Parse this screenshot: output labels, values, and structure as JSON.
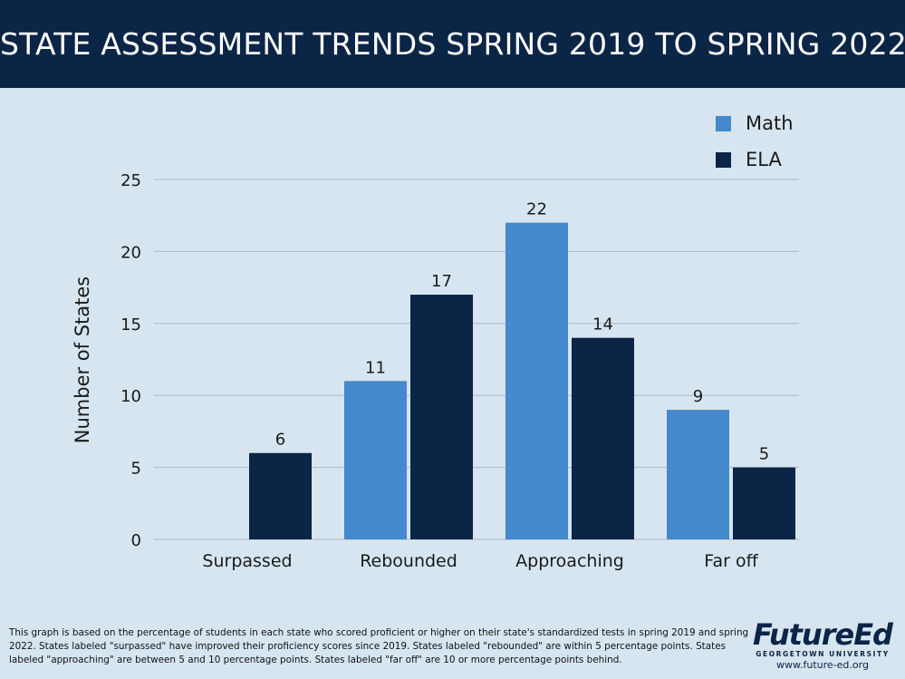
{
  "header": {
    "title": "STATE ASSESSMENT TRENDS SPRING 2019 TO SPRING 2022"
  },
  "colors": {
    "header_bg": "#0b2547",
    "background": "#d6e5f0",
    "math": "#4489cb",
    "ela": "#0b2547",
    "grid": "#a9b9c7"
  },
  "chart_data": {
    "type": "bar",
    "title": "",
    "xlabel": "",
    "ylabel": "Number of States",
    "ylim": [
      0,
      25
    ],
    "yticks": [
      0,
      5,
      10,
      15,
      20,
      25
    ],
    "categories": [
      "Surpassed",
      "Rebounded",
      "Approaching",
      "Far off"
    ],
    "series": [
      {
        "name": "Math",
        "values": [
          null,
          11,
          22,
          9
        ],
        "labels": [
          "",
          "11",
          "22",
          "9"
        ]
      },
      {
        "name": "ELA",
        "values": [
          6,
          17,
          14,
          5
        ],
        "labels": [
          "6",
          "17",
          "14",
          "5"
        ]
      }
    ],
    "grid": true,
    "legend": "top-right"
  },
  "legend": {
    "items": [
      {
        "label": "Math"
      },
      {
        "label": "ELA"
      }
    ]
  },
  "footnote": {
    "text": "This graph is based on the percentage of students in each state who scored proficient or higher on their state's standardized tests in spring 2019 and spring 2022. States labeled \"surpassed\" have improved their proficiency scores since 2019. States labeled \"rebounded\" are within 5 percentage points. States labeled \"approaching\" are between 5 and 10 percentage points. States labeled \"far off\" are 10 or more percentage points behind."
  },
  "brand": {
    "logo": "FutureEd",
    "subtitle": "GEORGETOWN UNIVERSITY",
    "url": "www.future-ed.org"
  }
}
